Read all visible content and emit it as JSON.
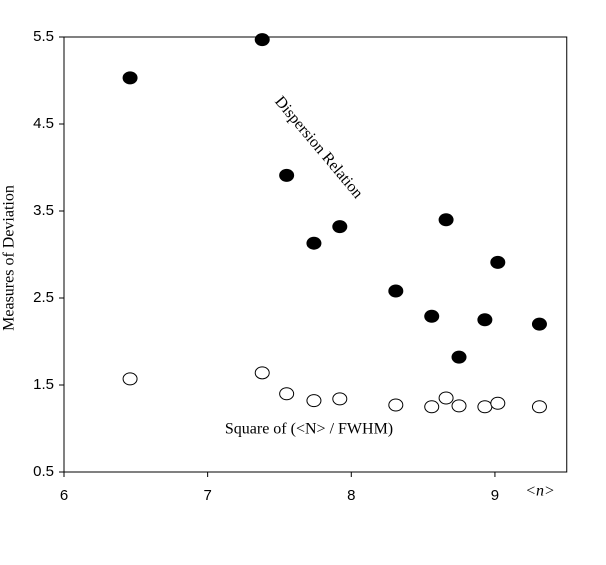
{
  "chart_data": {
    "type": "scatter",
    "y_label": "Measures of Deviation",
    "x_label": "<n>",
    "xlim": [
      6,
      9.5
    ],
    "xticks": [
      6,
      7,
      8,
      9
    ],
    "ylim": [
      0.5,
      5.5
    ],
    "yticks": [
      0.5,
      1.5,
      2.5,
      3.5,
      4.5,
      5.5
    ],
    "grid": false,
    "series": [
      {
        "name": "Dispersion Relation",
        "color": "#000000",
        "x": [
          6.46,
          7.38,
          7.55,
          7.74,
          7.92,
          8.31,
          8.56,
          8.66,
          8.75,
          8.93,
          9.02,
          9.31
        ],
        "values": [
          5.03,
          5.47,
          3.91,
          3.13,
          3.32,
          2.58,
          2.29,
          3.4,
          1.82,
          2.25,
          2.91,
          2.2
        ]
      },
      {
        "name": "Square of (<N> / FWHM)",
        "color": "#ffffff",
        "x": [
          6.46,
          7.38,
          7.55,
          7.74,
          7.92,
          8.31,
          8.56,
          8.66,
          8.75,
          8.93,
          9.02,
          9.31
        ],
        "values": [
          1.57,
          1.64,
          1.4,
          1.32,
          1.34,
          1.27,
          1.25,
          1.35,
          1.26,
          1.25,
          1.29,
          1.25
        ]
      }
    ]
  }
}
